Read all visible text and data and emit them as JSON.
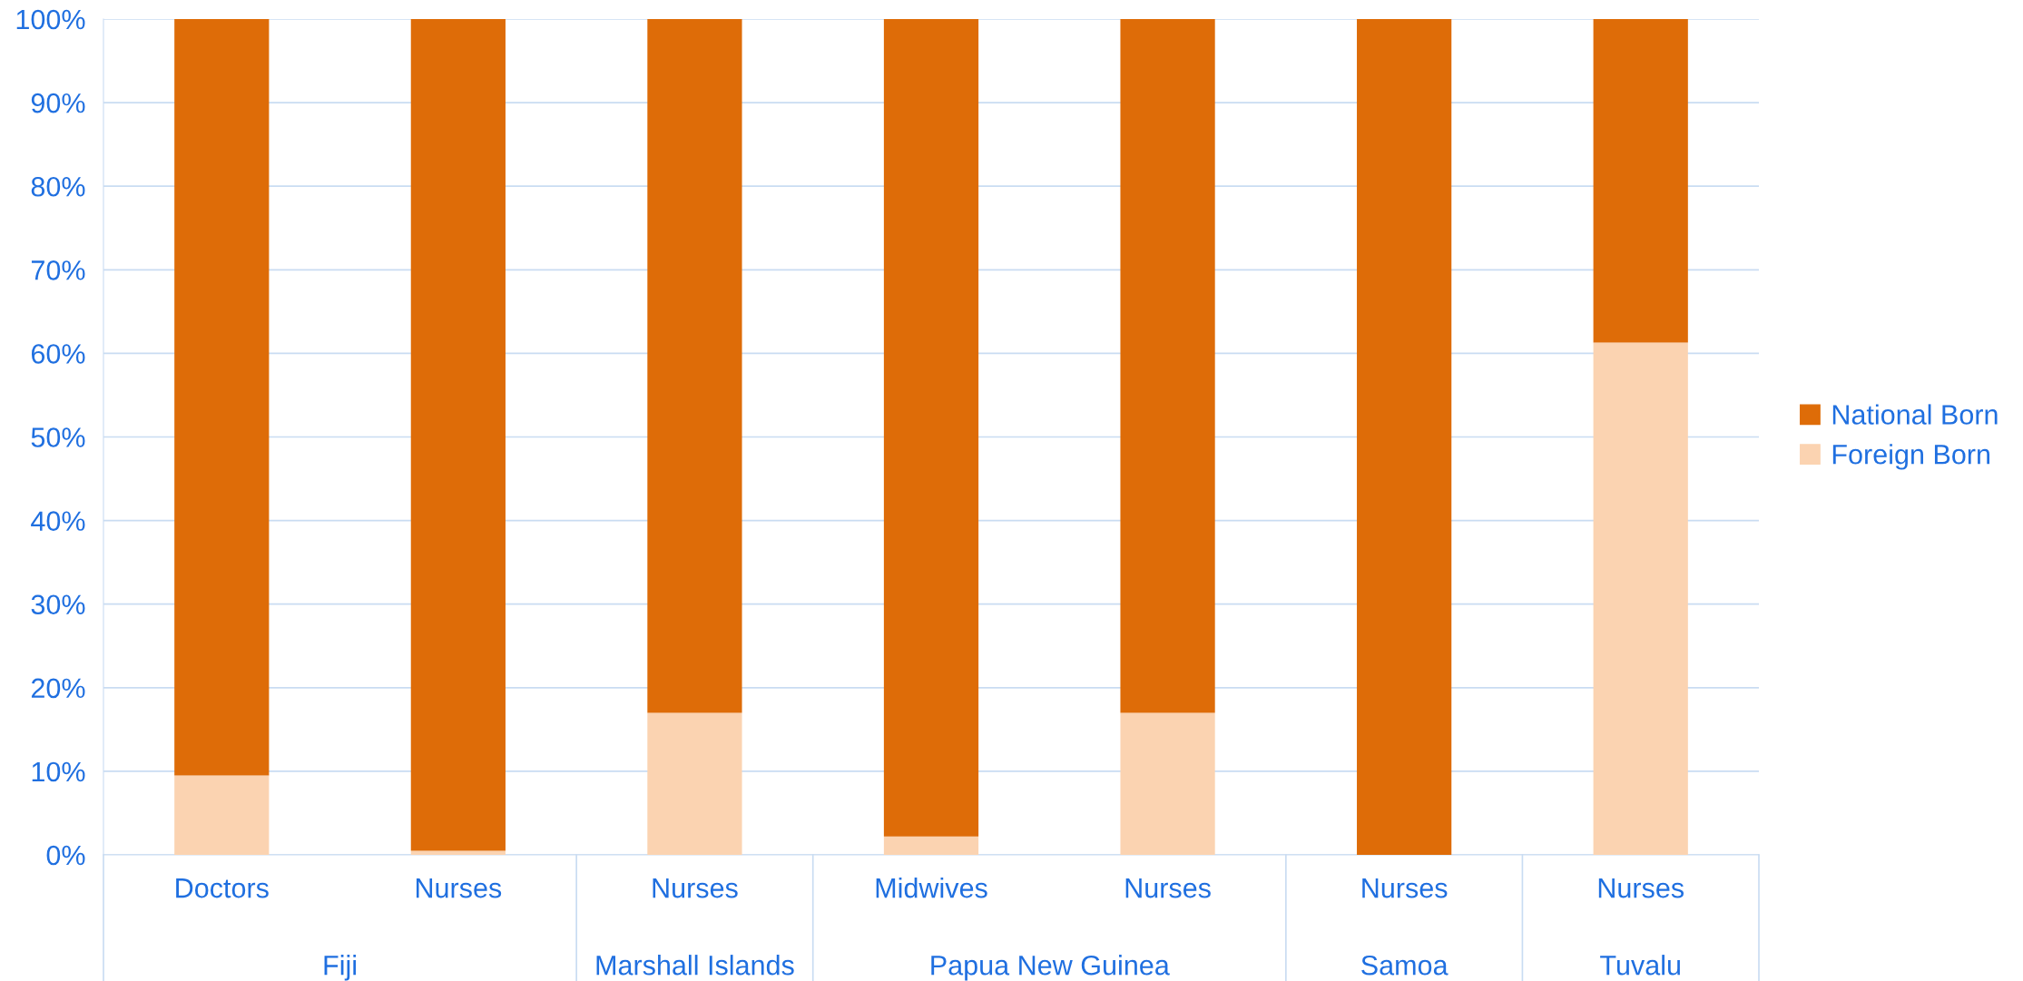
{
  "chart_data": {
    "type": "bar",
    "stacked": true,
    "categories": [
      "Doctors",
      "Nurses",
      "Nurses",
      "Midwives",
      "Nurses",
      "Nurses",
      "Nurses"
    ],
    "series": [
      {
        "name": "Foreign Born",
        "color": "#fbd3b1",
        "values": [
          9.5,
          0.5,
          17,
          2.2,
          17,
          0,
          61.3
        ]
      },
      {
        "name": "National Born",
        "color": "#de6c08",
        "values": [
          90.5,
          99.5,
          83,
          97.8,
          83,
          100,
          38.7
        ]
      }
    ],
    "annotations": [
      "Fiji",
      "Marshall Islands",
      "Papua New Guinea",
      "Samoa",
      "Tuvalu"
    ],
    "ylim": [
      0,
      100
    ],
    "yticks": [
      {
        "value": 0,
        "label": "0%"
      },
      {
        "value": 10,
        "label": "10%"
      },
      {
        "value": 20,
        "label": "20%"
      },
      {
        "value": 30,
        "label": "30%"
      },
      {
        "value": 40,
        "label": "40%"
      },
      {
        "value": 50,
        "label": "50%"
      },
      {
        "value": 60,
        "label": "60%"
      },
      {
        "value": 70,
        "label": "70%"
      },
      {
        "value": 80,
        "label": "80%"
      },
      {
        "value": 90,
        "label": "90%"
      },
      {
        "value": 100,
        "label": "100%"
      }
    ],
    "grid": "y",
    "legend": "right"
  }
}
